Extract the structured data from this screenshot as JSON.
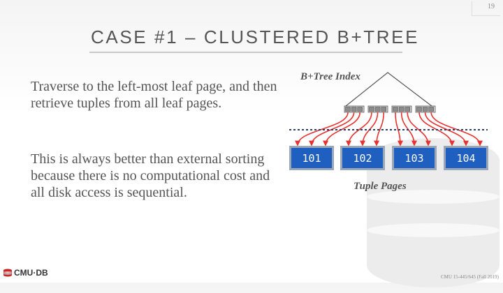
{
  "slide": {
    "page_number": "19",
    "title": "CASE #1 – CLUSTERED B+TREE",
    "paragraphs": [
      "Traverse to the left-most leaf page, and then retrieve tuples from all leaf pages.",
      "This is always better than external sorting because there is no computational cost and all disk access is sequential."
    ]
  },
  "diagram": {
    "index_label": "B+Tree Index",
    "tuple_label": "Tuple Pages",
    "pages": [
      "101",
      "102",
      "103",
      "104"
    ],
    "colors": {
      "page_fill": "#1f5fbf",
      "arrow": "#e8322e",
      "leaf": "#8c8c8c"
    }
  },
  "footer": {
    "logo_text": "CMU·DB",
    "course": "CMU 15-445/645 (Fall 2019)"
  }
}
